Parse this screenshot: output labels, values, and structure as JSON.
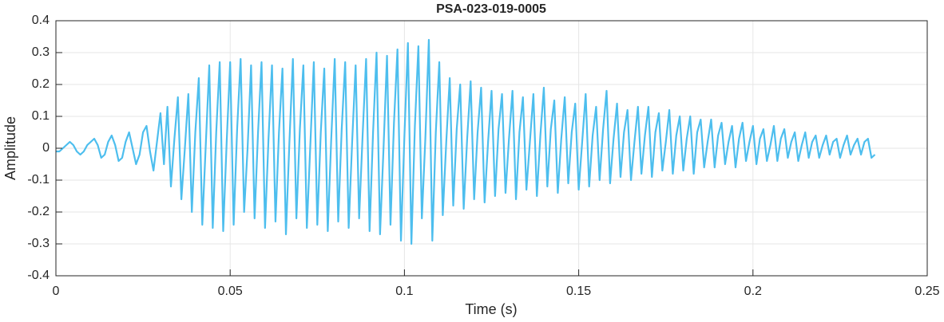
{
  "chart_data": {
    "type": "line",
    "title": "PSA-023-019-0005",
    "x_label": "Time (s)",
    "y_label": "Amplitude",
    "xlim": [
      0,
      0.25
    ],
    "xticks": [
      0,
      0.05,
      0.1,
      0.15,
      0.2,
      0.25
    ],
    "ylim": [
      -0.4,
      0.4
    ],
    "yticks": [
      -0.4,
      -0.3,
      -0.2,
      -0.1,
      0,
      0.1,
      0.2,
      0.3,
      0.4
    ],
    "grid": true,
    "x": [
      0,
      0.001,
      0.002,
      0.003,
      0.004,
      0.005,
      0.006,
      0.007,
      0.008,
      0.009,
      0.01,
      0.011,
      0.012,
      0.013,
      0.014,
      0.015,
      0.016,
      0.017,
      0.018,
      0.019,
      0.02,
      0.021,
      0.022,
      0.023,
      0.024,
      0.025,
      0.026,
      0.027,
      0.028,
      0.029,
      0.03,
      0.031,
      0.032,
      0.033,
      0.034,
      0.035,
      0.036,
      0.037,
      0.038,
      0.039,
      0.04,
      0.041,
      0.042,
      0.043,
      0.044,
      0.045,
      0.046,
      0.047,
      0.048,
      0.049,
      0.05,
      0.051,
      0.052,
      0.053,
      0.054,
      0.055,
      0.056,
      0.057,
      0.058,
      0.059,
      0.06,
      0.061,
      0.062,
      0.063,
      0.064,
      0.065,
      0.066,
      0.067,
      0.068,
      0.069,
      0.07,
      0.071,
      0.072,
      0.073,
      0.074,
      0.075,
      0.076,
      0.077,
      0.078,
      0.079,
      0.08,
      0.081,
      0.082,
      0.083,
      0.084,
      0.085,
      0.086,
      0.087,
      0.088,
      0.089,
      0.09,
      0.091,
      0.092,
      0.093,
      0.094,
      0.095,
      0.096,
      0.097,
      0.098,
      0.099,
      0.1,
      0.101,
      0.102,
      0.103,
      0.104,
      0.105,
      0.106,
      0.107,
      0.108,
      0.109,
      0.11,
      0.111,
      0.112,
      0.113,
      0.114,
      0.115,
      0.116,
      0.117,
      0.118,
      0.119,
      0.12,
      0.121,
      0.122,
      0.123,
      0.124,
      0.125,
      0.126,
      0.127,
      0.128,
      0.129,
      0.13,
      0.131,
      0.132,
      0.133,
      0.134,
      0.135,
      0.136,
      0.137,
      0.138,
      0.139,
      0.14,
      0.141,
      0.142,
      0.143,
      0.144,
      0.145,
      0.146,
      0.147,
      0.148,
      0.149,
      0.15,
      0.151,
      0.152,
      0.153,
      0.154,
      0.155,
      0.156,
      0.157,
      0.158,
      0.159,
      0.16,
      0.161,
      0.162,
      0.163,
      0.164,
      0.165,
      0.166,
      0.167,
      0.168,
      0.169,
      0.17,
      0.171,
      0.172,
      0.173,
      0.174,
      0.175,
      0.176,
      0.177,
      0.178,
      0.179,
      0.18,
      0.181,
      0.182,
      0.183,
      0.184,
      0.185,
      0.186,
      0.187,
      0.188,
      0.189,
      0.19,
      0.191,
      0.192,
      0.193,
      0.194,
      0.195,
      0.196,
      0.197,
      0.198,
      0.199,
      0.2,
      0.201,
      0.202,
      0.203,
      0.204,
      0.205,
      0.206,
      0.207,
      0.208,
      0.209,
      0.21,
      0.211,
      0.212,
      0.213,
      0.214,
      0.215,
      0.216,
      0.217,
      0.218,
      0.219,
      0.22,
      0.221,
      0.222,
      0.223,
      0.224,
      0.225,
      0.226,
      0.227,
      0.228,
      0.229,
      0.23,
      0.231,
      0.232,
      0.233,
      0.234,
      0.235
    ],
    "series": [
      {
        "color": "#4dbeee",
        "values": [
          -0.01,
          -0.01,
          0,
          0.01,
          0.02,
          0.01,
          -0.01,
          -0.02,
          -0.01,
          0.01,
          0.02,
          0.03,
          0.01,
          -0.03,
          -0.02,
          0.02,
          0.04,
          0.01,
          -0.04,
          -0.03,
          0.02,
          0.05,
          0,
          -0.05,
          -0.02,
          0.05,
          0.07,
          -0.01,
          -0.07,
          0.02,
          0.11,
          -0.05,
          0.13,
          -0.12,
          0.03,
          0.16,
          -0.16,
          0,
          0.17,
          -0.2,
          0.05,
          0.22,
          -0.24,
          0.01,
          0.26,
          -0.25,
          0.05,
          0.27,
          -0.26,
          0.02,
          0.27,
          -0.24,
          0.06,
          0.28,
          -0.2,
          0,
          0.26,
          -0.22,
          0.05,
          0.27,
          -0.25,
          0.03,
          0.26,
          -0.23,
          0.05,
          0.25,
          -0.27,
          0.02,
          0.28,
          -0.22,
          0.06,
          0.26,
          -0.25,
          0.01,
          0.27,
          -0.24,
          0.05,
          0.25,
          -0.26,
          0.03,
          0.28,
          -0.23,
          0.06,
          0.27,
          -0.25,
          0.02,
          0.26,
          -0.22,
          0.04,
          0.28,
          -0.26,
          0.05,
          0.3,
          -0.27,
          0,
          0.29,
          -0.24,
          0.08,
          0.31,
          -0.29,
          0.04,
          0.33,
          -0.3,
          0.07,
          0.32,
          -0.22,
          0.03,
          0.34,
          -0.29,
          0.05,
          0.27,
          -0.21,
          0.02,
          0.22,
          -0.18,
          0.06,
          0.2,
          -0.19,
          0.03,
          0.21,
          -0.16,
          0.05,
          0.19,
          -0.17,
          0.02,
          0.18,
          -0.15,
          0.06,
          0.17,
          -0.14,
          0.03,
          0.18,
          -0.16,
          0.05,
          0.16,
          -0.13,
          0.02,
          0.17,
          -0.15,
          0.04,
          0.19,
          -0.12,
          0.06,
          0.15,
          -0.14,
          0.03,
          0.16,
          -0.11,
          0.05,
          0.14,
          -0.13,
          0.02,
          0.17,
          -0.12,
          0.04,
          0.13,
          -0.1,
          0.06,
          0.18,
          -0.11,
          0.03,
          0.14,
          -0.09,
          0.05,
          0.12,
          -0.1,
          0.02,
          0.13,
          -0.08,
          0.04,
          0.13,
          -0.09,
          0.05,
          0.11,
          -0.07,
          0.02,
          0.12,
          -0.08,
          0.04,
          0.1,
          -0.07,
          0.03,
          0.1,
          -0.08,
          0.05,
          0.09,
          -0.06,
          0.02,
          0.09,
          -0.06,
          0.04,
          0.08,
          -0.05,
          0.02,
          0.07,
          -0.06,
          0.03,
          0.08,
          -0.04,
          0.02,
          0.07,
          -0.05,
          0.03,
          0.06,
          -0.04,
          0.01,
          0.07,
          -0.04,
          0.03,
          0.06,
          -0.03,
          0.02,
          0.05,
          -0.04,
          0.01,
          0.05,
          -0.03,
          0.02,
          0.04,
          -0.03,
          0.01,
          0.04,
          -0.02,
          0.02,
          0.03,
          -0.03,
          0.01,
          0.04,
          -0.02,
          0.01,
          0.03,
          -0.02,
          0.02,
          0.03,
          -0.03,
          -0.02
        ]
      }
    ]
  }
}
